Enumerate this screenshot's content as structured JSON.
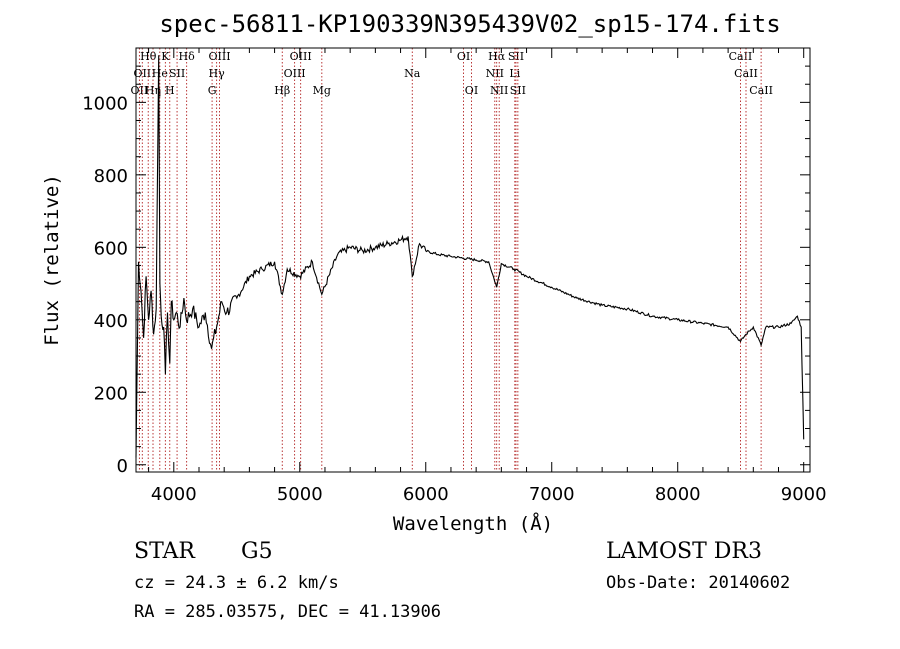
{
  "chart_data": {
    "type": "line",
    "title": "spec-56811-KP190339N395439V02_sp15-174.fits",
    "xlabel": "Wavelength (Å)",
    "ylabel": "Flux (relative)",
    "xlim": [
      3700,
      9050
    ],
    "ylim": [
      -20,
      1150
    ],
    "xticks": [
      4000,
      5000,
      6000,
      7000,
      8000,
      9000
    ],
    "yticks": [
      0,
      200,
      400,
      600,
      800,
      1000
    ],
    "colors": {
      "spectrum": "#000000",
      "line_markers": "#b22222"
    },
    "spectrum": {
      "x": [
        3700,
        3720,
        3740,
        3760,
        3780,
        3800,
        3820,
        3840,
        3860,
        3880,
        3890,
        3900,
        3920,
        3933,
        3950,
        3968,
        3980,
        4000,
        4020,
        4050,
        4080,
        4100,
        4150,
        4200,
        4250,
        4300,
        4340,
        4380,
        4420,
        4500,
        4600,
        4700,
        4800,
        4861,
        4900,
        5000,
        5100,
        5175,
        5300,
        5400,
        5500,
        5600,
        5700,
        5800,
        5860,
        5893,
        5950,
        6000,
        6100,
        6200,
        6300,
        6400,
        6500,
        6563,
        6600,
        6700,
        6800,
        7000,
        7200,
        7400,
        7600,
        7800,
        8000,
        8200,
        8400,
        8498,
        8542,
        8600,
        8662,
        8700,
        8800,
        8900,
        8950,
        8980,
        9000
      ],
      "y": [
        20,
        560,
        480,
        350,
        520,
        400,
        480,
        360,
        430,
        1130,
        500,
        410,
        380,
        250,
        420,
        280,
        450,
        400,
        420,
        380,
        460,
        400,
        430,
        380,
        420,
        320,
        380,
        450,
        420,
        460,
        520,
        540,
        560,
        470,
        540,
        520,
        560,
        470,
        580,
        600,
        590,
        600,
        610,
        620,
        630,
        520,
        610,
        590,
        580,
        575,
        570,
        565,
        560,
        490,
        555,
        540,
        520,
        490,
        460,
        440,
        430,
        410,
        400,
        390,
        380,
        340,
        360,
        380,
        330,
        380,
        380,
        390,
        410,
        380,
        70
      ]
    },
    "spectral_lines": [
      {
        "wavelength": 3727,
        "label": "OII",
        "row": 2
      },
      {
        "wavelength": 3750,
        "label": "OII",
        "row": 1
      },
      {
        "wavelength": 3797,
        "label": "Hθ",
        "row": 0
      },
      {
        "wavelength": 3835,
        "label": "Hη",
        "row": 2
      },
      {
        "wavelength": 3889,
        "label": "He",
        "row": 1
      },
      {
        "wavelength": 3933,
        "label": "K",
        "row": 0
      },
      {
        "wavelength": 3968,
        "label": "H",
        "row": 2
      },
      {
        "wavelength": 4026,
        "label": "SII",
        "row": 1
      },
      {
        "wavelength": 4102,
        "label": "Hδ",
        "row": 0
      },
      {
        "wavelength": 4304,
        "label": "G",
        "row": 2
      },
      {
        "wavelength": 4340,
        "label": "Hγ",
        "row": 1
      },
      {
        "wavelength": 4363,
        "label": "OIII",
        "row": 0
      },
      {
        "wavelength": 4861,
        "label": "Hβ",
        "row": 2
      },
      {
        "wavelength": 4959,
        "label": "OIII",
        "row": 1
      },
      {
        "wavelength": 5007,
        "label": "OIII",
        "row": 0
      },
      {
        "wavelength": 5175,
        "label": "Mg",
        "row": 2
      },
      {
        "wavelength": 5893,
        "label": "Na",
        "row": 1
      },
      {
        "wavelength": 6300,
        "label": "OI",
        "row": 0
      },
      {
        "wavelength": 6363,
        "label": "OI",
        "row": 2
      },
      {
        "wavelength": 6548,
        "label": "NII",
        "row": 1
      },
      {
        "wavelength": 6563,
        "label": "Hα",
        "row": 0
      },
      {
        "wavelength": 6583,
        "label": "NII",
        "row": 2
      },
      {
        "wavelength": 6707,
        "label": "Li",
        "row": 1
      },
      {
        "wavelength": 6716,
        "label": "SII",
        "row": 0
      },
      {
        "wavelength": 6731,
        "label": "SII",
        "row": 2
      },
      {
        "wavelength": 8498,
        "label": "CaII",
        "row": 0
      },
      {
        "wavelength": 8542,
        "label": "CaII",
        "row": 1
      },
      {
        "wavelength": 8662,
        "label": "CaII",
        "row": 2
      }
    ]
  },
  "info": {
    "object_class": "STAR",
    "subclass": "G5",
    "survey": "LAMOST DR3",
    "redshift": "cz = 24.3 ± 6.2 km/s",
    "obs_date": "Obs-Date: 20140602",
    "coordinates": "RA = 285.03575, DEC =  41.13906"
  }
}
